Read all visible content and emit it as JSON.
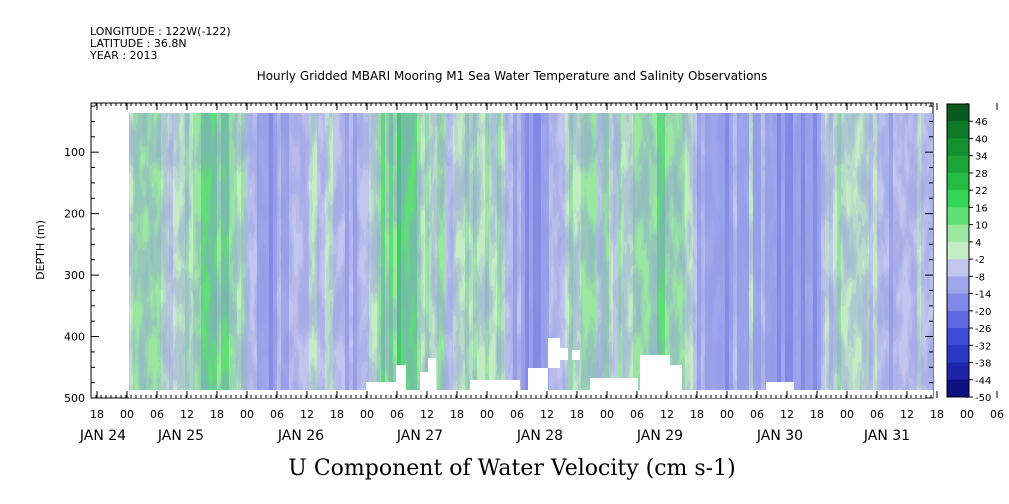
{
  "header": {
    "longitude": "LONGITUDE : 122W(-122)",
    "latitude": "LATITUDE : 36.8N",
    "year": "YEAR : 2013"
  },
  "chart_data": {
    "type": "heatmap",
    "title": "Hourly Gridded MBARI Mooring M1 Sea Water Temperature and Salinity Observations",
    "xlabel": "U Component of Water Velocity (cm s-1)",
    "ylabel": "DEPTH (m)",
    "ylim": [
      500,
      20
    ],
    "yticks": [
      100,
      200,
      300,
      400,
      500
    ],
    "xrange_days": [
      "JAN 24 12:00",
      "JAN 31 23:00"
    ],
    "xtick_hours": [
      "18",
      "00",
      "06",
      "12",
      "18",
      "00",
      "06",
      "12",
      "18",
      "00",
      "06",
      "12",
      "18",
      "00",
      "06",
      "12",
      "18",
      "00",
      "06",
      "12",
      "18",
      "00",
      "06",
      "12",
      "18",
      "00",
      "06",
      "12",
      "18",
      "00",
      "06",
      "12"
    ],
    "day_labels": [
      "JAN 24",
      "JAN 25",
      "JAN 26",
      "JAN 27",
      "JAN 28",
      "JAN 29",
      "JAN 30",
      "JAN 31"
    ],
    "colorbar": {
      "levels": [
        48,
        46,
        40,
        34,
        28,
        22,
        16,
        10,
        4,
        -2,
        -8,
        -14,
        -20,
        -26,
        -32,
        -38,
        -44,
        -50
      ],
      "labels": [
        "46",
        "40",
        "34",
        "28",
        "22",
        "16",
        "10",
        "4",
        "-2",
        "-8",
        "-14",
        "-20",
        "-26",
        "-32",
        "-38",
        "-44",
        "-50"
      ]
    },
    "dominant_range": [
      -14,
      16
    ],
    "data_extent": {
      "x_start_day": "JAN 25",
      "depth_min": 20,
      "depth_max": 485
    }
  }
}
